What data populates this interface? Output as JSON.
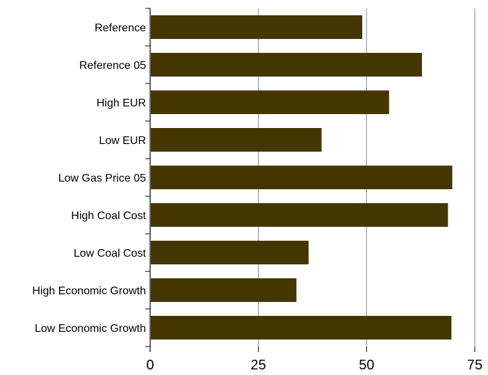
{
  "chart_data": {
    "type": "bar",
    "orientation": "horizontal",
    "categories": [
      "Reference",
      "Reference 05",
      "High EUR",
      "Low EUR",
      "Low Gas Price 05",
      "High Coal Cost",
      "Low Coal Cost",
      "High Economic Growth",
      "Low Economic Growth"
    ],
    "values": [
      49,
      62.8,
      55.2,
      39.6,
      69.8,
      68.8,
      36.6,
      33.8,
      69.6
    ],
    "xlim": [
      0,
      75
    ],
    "xticks": [
      "0",
      "25",
      "50",
      "75"
    ],
    "grid": "vertical",
    "bar_color": "#453600",
    "grid_color": "#999999",
    "title": "",
    "xlabel": "",
    "ylabel": ""
  }
}
